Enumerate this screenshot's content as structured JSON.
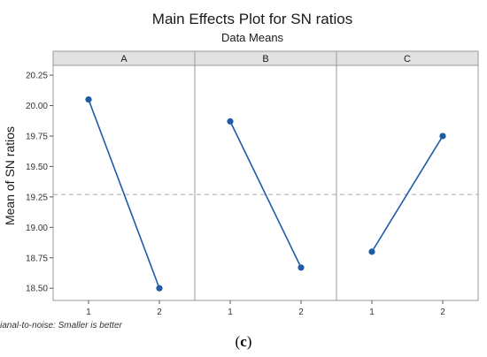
{
  "chart_data": {
    "type": "line",
    "title": "Main Effects Plot for SN ratios",
    "subtitle": "Data Means",
    "ylabel": "Mean of SN ratios",
    "ylim": [
      18.4,
      20.33
    ],
    "yticks": [
      "18.50",
      "18.75",
      "19.00",
      "19.25",
      "19.50",
      "19.75",
      "20.00",
      "20.25"
    ],
    "reference_line": 19.27,
    "panels": [
      {
        "factor": "A",
        "levels": [
          "1",
          "2"
        ],
        "values": [
          20.05,
          18.5
        ]
      },
      {
        "factor": "B",
        "levels": [
          "1",
          "2"
        ],
        "values": [
          19.87,
          18.67
        ]
      },
      {
        "factor": "C",
        "levels": [
          "1",
          "2"
        ],
        "values": [
          18.8,
          19.75
        ]
      }
    ],
    "footnote": "ianal-to-noise: Smaller is better",
    "grid": false,
    "line_color": "#1f5ca8",
    "reference_color": "#a8a8a8"
  },
  "caption": {
    "open": "(",
    "letter": "c",
    "close": ")"
  }
}
